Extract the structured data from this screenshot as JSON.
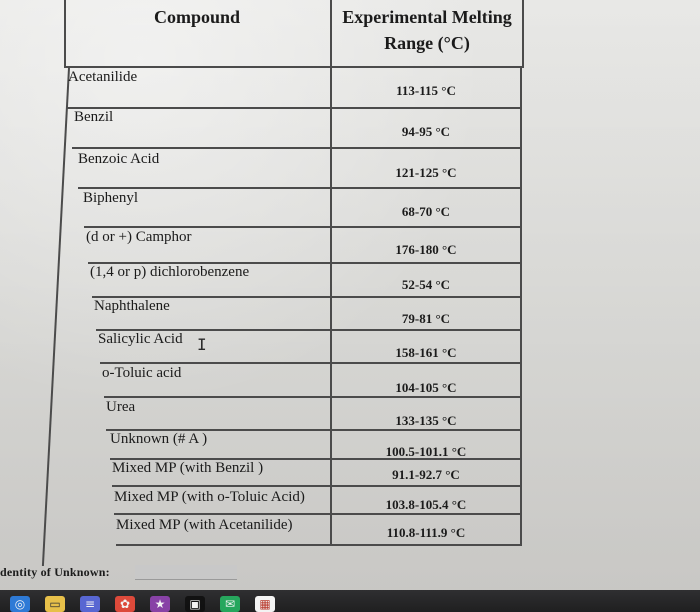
{
  "table": {
    "headers": {
      "compound": "Compound",
      "melting_line1": "Experimental Melting",
      "melting_line2": "Range (°C)"
    },
    "rows": [
      {
        "compound": "Acetanilide",
        "range": "113-115 °C"
      },
      {
        "compound": "Benzil",
        "range": "94-95 °C"
      },
      {
        "compound": "Benzoic Acid",
        "range": "121-125 °C"
      },
      {
        "compound": "Biphenyl",
        "range": "68-70 °C"
      },
      {
        "compound": "(d or +) Camphor",
        "range": "176-180 °C"
      },
      {
        "compound": "(1,4 or p) dichlorobenzene",
        "range": "52-54 °C"
      },
      {
        "compound": "Naphthalene",
        "range": "79-81 °C"
      },
      {
        "compound": "Salicylic Acid",
        "range": "158-161 °C"
      },
      {
        "compound": "o-Toluic acid",
        "range": "104-105 °C"
      },
      {
        "compound": "Urea",
        "range": "133-135 °C"
      },
      {
        "compound": "Unknown (# A )",
        "range": "100.5-101.1 °C"
      },
      {
        "compound": "Mixed MP (with Benzil )",
        "range": "91.1-92.7 °C"
      },
      {
        "compound": "Mixed MP (with o-Toluic Acid)",
        "range": "103.8-105.4 °C"
      },
      {
        "compound": "Mixed MP (with Acetanilide)",
        "range": "110.8-111.9 °C"
      }
    ]
  },
  "footer": {
    "label": "dentity of Unknown:"
  },
  "dock": {
    "icons": [
      {
        "name": "safari-icon",
        "color": "#2f7fe0"
      },
      {
        "name": "notes-icon",
        "color": "#f2c94c"
      },
      {
        "name": "list-icon",
        "color": "#5b6bdc"
      },
      {
        "name": "photos-icon",
        "color": "#e74c3c"
      },
      {
        "name": "star-icon",
        "color": "#8e44ad"
      },
      {
        "name": "app-icon",
        "color": "#111111"
      },
      {
        "name": "messages-icon",
        "color": "#27ae60"
      },
      {
        "name": "calendar-icon",
        "color": "#ffffff"
      }
    ]
  }
}
